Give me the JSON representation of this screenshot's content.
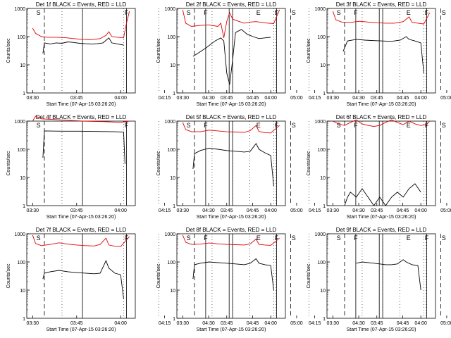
{
  "chart_data": {
    "type": "line",
    "layout": "3x3 grid of log-scale time-series panels",
    "series_legend": {
      "events": "BLACK = Events",
      "lld": "RED = LLD"
    },
    "colors": {
      "events": "#000000",
      "lld": "#e00000",
      "axes": "#000000"
    },
    "yaxis": {
      "label": "Counts/sec",
      "scale": "log",
      "ylim": [
        1,
        1000
      ],
      "ticks": [
        "1",
        "10",
        "100",
        "1000"
      ]
    },
    "xaxis": {
      "label": "Start Time (07-Apr-15 03:26:20)",
      "ticks": [
        "03:30",
        "03:45",
        "04:00",
        "04:15",
        "04:30",
        "04:45",
        "05:00"
      ],
      "xlim_minutes_from_0330": [
        -2,
        35
      ]
    },
    "markers": {
      "dashed": [
        "03:34",
        "04:58"
      ],
      "dotted": [
        "03:40",
        "03:47",
        "04:01",
        "04:13",
        "04:44",
        "04:53"
      ],
      "solid": [
        "03:47",
        "04:02",
        "04:29",
        "04:37"
      ],
      "letters": [
        {
          "text": "S",
          "at": "03:32"
        },
        {
          "text": "F",
          "at": "04:02"
        },
        {
          "text": "F",
          "at": "04:29"
        },
        {
          "text": "E",
          "at": "04:47"
        },
        {
          "text": "S",
          "at": "04:59"
        }
      ]
    },
    "panels": [
      {
        "title": "Det 1f BLACK = Events, RED = LLD",
        "events": [
          [
            3.5,
            25
          ],
          [
            4,
            60
          ],
          [
            6,
            55
          ],
          [
            8,
            60
          ],
          [
            10,
            58
          ],
          [
            12,
            65
          ],
          [
            14,
            62
          ],
          [
            16,
            58
          ],
          [
            18,
            56
          ],
          [
            20,
            55
          ],
          [
            22,
            56
          ],
          [
            24,
            60
          ],
          [
            26,
            90
          ],
          [
            27,
            60
          ],
          [
            29,
            55
          ],
          [
            31,
            50
          ]
        ],
        "lld": [
          [
            0,
            200
          ],
          [
            1,
            130
          ],
          [
            3,
            100
          ],
          [
            5,
            95
          ],
          [
            8,
            95
          ],
          [
            11,
            92
          ],
          [
            14,
            85
          ],
          [
            17,
            80
          ],
          [
            20,
            78
          ],
          [
            23,
            85
          ],
          [
            25,
            110
          ],
          [
            26,
            150
          ],
          [
            27,
            100
          ],
          [
            29,
            95
          ],
          [
            31,
            90
          ],
          [
            32,
            300
          ],
          [
            33,
            800
          ]
        ]
      },
      {
        "title": "Det 2f BLACK = Events, RED = LLD",
        "events": [
          [
            3.5,
            20
          ],
          [
            5,
            25
          ],
          [
            8,
            40
          ],
          [
            11,
            70
          ],
          [
            13,
            90
          ],
          [
            14,
            70
          ],
          [
            15,
            5
          ],
          [
            16,
            2
          ],
          [
            17,
            15
          ],
          [
            18,
            140
          ],
          [
            20,
            180
          ],
          [
            22,
            120
          ],
          [
            24,
            100
          ],
          [
            26,
            85
          ],
          [
            28,
            90
          ],
          [
            30,
            95
          ]
        ],
        "lld": [
          [
            0,
            900
          ],
          [
            1,
            300
          ],
          [
            3,
            230
          ],
          [
            6,
            250
          ],
          [
            9,
            260
          ],
          [
            12,
            230
          ],
          [
            13,
            300
          ],
          [
            14,
            90
          ],
          [
            15,
            350
          ],
          [
            16,
            700
          ],
          [
            17,
            420
          ],
          [
            19,
            350
          ],
          [
            21,
            300
          ],
          [
            23,
            330
          ],
          [
            25,
            340
          ],
          [
            27,
            320
          ],
          [
            29,
            300
          ],
          [
            31,
            290
          ],
          [
            33,
            900
          ]
        ]
      },
      {
        "title": "Det 3f BLACK = Events, RED = LLD",
        "events": [
          [
            3.5,
            30
          ],
          [
            5,
            70
          ],
          [
            8,
            80
          ],
          [
            11,
            75
          ],
          [
            14,
            72
          ],
          [
            17,
            70
          ],
          [
            20,
            68
          ],
          [
            23,
            75
          ],
          [
            25,
            100
          ],
          [
            26,
            80
          ],
          [
            28,
            70
          ],
          [
            30,
            60
          ],
          [
            31,
            5
          ]
        ],
        "lld": [
          [
            0,
            800
          ],
          [
            1,
            400
          ],
          [
            3,
            330
          ],
          [
            6,
            320
          ],
          [
            9,
            350
          ],
          [
            12,
            330
          ],
          [
            15,
            310
          ],
          [
            18,
            300
          ],
          [
            21,
            300
          ],
          [
            24,
            340
          ],
          [
            26,
            500
          ],
          [
            27,
            320
          ],
          [
            29,
            300
          ],
          [
            31,
            280
          ],
          [
            33,
            700
          ]
        ]
      },
      {
        "title": "Det 4f BLACK = Events, RED = LLD",
        "events": [
          [
            3.5,
            50
          ],
          [
            4,
            450
          ],
          [
            10,
            440
          ],
          [
            16,
            440
          ],
          [
            22,
            430
          ],
          [
            28,
            420
          ],
          [
            31,
            410
          ],
          [
            31.5,
            30
          ]
        ],
        "lld": [
          [
            0,
            1000
          ],
          [
            1,
            1500
          ],
          [
            3,
            1200
          ],
          [
            10,
            1100
          ],
          [
            17,
            1000
          ],
          [
            24,
            960
          ],
          [
            30,
            900
          ],
          [
            33,
            1000
          ]
        ]
      },
      {
        "title": "Det 5f BLACK = Events, RED = LLD",
        "events": [
          [
            3.5,
            20
          ],
          [
            4,
            70
          ],
          [
            6,
            90
          ],
          [
            9,
            110
          ],
          [
            12,
            100
          ],
          [
            15,
            90
          ],
          [
            18,
            85
          ],
          [
            21,
            80
          ],
          [
            23,
            85
          ],
          [
            25,
            160
          ],
          [
            26,
            100
          ],
          [
            28,
            75
          ],
          [
            30,
            60
          ],
          [
            31,
            5
          ]
        ],
        "lld": [
          [
            0,
            900
          ],
          [
            1,
            500
          ],
          [
            3,
            420
          ],
          [
            6,
            420
          ],
          [
            9,
            480
          ],
          [
            12,
            450
          ],
          [
            15,
            420
          ],
          [
            18,
            410
          ],
          [
            21,
            400
          ],
          [
            23,
            460
          ],
          [
            25,
            700
          ],
          [
            26,
            430
          ],
          [
            28,
            390
          ],
          [
            30,
            380
          ],
          [
            33,
            700
          ]
        ]
      },
      {
        "title": "Det 6f BLACK = Events, RED = LLD",
        "events": [
          [
            4,
            1
          ],
          [
            5,
            2
          ],
          [
            6,
            3
          ],
          [
            8,
            2
          ],
          [
            10,
            4
          ],
          [
            12,
            2
          ],
          [
            14,
            1
          ],
          [
            16,
            2
          ],
          [
            18,
            1
          ],
          [
            20,
            2
          ],
          [
            22,
            3
          ],
          [
            24,
            2
          ],
          [
            26,
            4
          ],
          [
            28,
            6
          ],
          [
            30,
            3
          ]
        ],
        "lld": [
          [
            0,
            1000
          ],
          [
            2,
            800
          ],
          [
            4,
            700
          ],
          [
            6,
            900
          ],
          [
            8,
            1100
          ],
          [
            10,
            800
          ],
          [
            12,
            700
          ],
          [
            14,
            650
          ],
          [
            16,
            700
          ],
          [
            18,
            900
          ],
          [
            20,
            1100
          ],
          [
            22,
            900
          ],
          [
            24,
            750
          ],
          [
            26,
            1000
          ],
          [
            28,
            800
          ],
          [
            30,
            700
          ],
          [
            32,
            750
          ],
          [
            33,
            1000
          ]
        ]
      },
      {
        "title": "Det 7f BLACK = Events, RED = LLD",
        "events": [
          [
            3.5,
            25
          ],
          [
            4,
            40
          ],
          [
            6,
            45
          ],
          [
            9,
            50
          ],
          [
            12,
            45
          ],
          [
            15,
            42
          ],
          [
            18,
            40
          ],
          [
            21,
            38
          ],
          [
            23,
            40
          ],
          [
            25,
            110
          ],
          [
            26,
            60
          ],
          [
            28,
            40
          ],
          [
            30,
            35
          ],
          [
            31,
            5
          ]
        ],
        "lld": [
          [
            0,
            900
          ],
          [
            1,
            450
          ],
          [
            3,
            380
          ],
          [
            6,
            420
          ],
          [
            9,
            480
          ],
          [
            12,
            430
          ],
          [
            15,
            400
          ],
          [
            18,
            380
          ],
          [
            21,
            370
          ],
          [
            23,
            420
          ],
          [
            25,
            700
          ],
          [
            26,
            400
          ],
          [
            28,
            360
          ],
          [
            30,
            350
          ],
          [
            33,
            800
          ]
        ]
      },
      {
        "title": "Det 8f BLACK = Events, RED = LLD",
        "events": [
          [
            3.5,
            25
          ],
          [
            4,
            80
          ],
          [
            6,
            90
          ],
          [
            9,
            100
          ],
          [
            12,
            95
          ],
          [
            15,
            90
          ],
          [
            18,
            85
          ],
          [
            21,
            80
          ],
          [
            23,
            90
          ],
          [
            25,
            130
          ],
          [
            26,
            90
          ],
          [
            28,
            80
          ],
          [
            30,
            75
          ],
          [
            31,
            10
          ]
        ],
        "lld": [
          [
            0,
            900
          ],
          [
            1,
            500
          ],
          [
            3,
            420
          ],
          [
            6,
            430
          ],
          [
            9,
            470
          ],
          [
            12,
            440
          ],
          [
            15,
            420
          ],
          [
            18,
            410
          ],
          [
            21,
            400
          ],
          [
            23,
            440
          ],
          [
            25,
            650
          ],
          [
            26,
            420
          ],
          [
            28,
            400
          ],
          [
            30,
            390
          ],
          [
            33,
            700
          ]
        ]
      },
      {
        "title": "Det 9f BLACK = Events, RED = LLD",
        "events": [
          [
            8,
            90
          ],
          [
            10,
            100
          ],
          [
            12,
            95
          ],
          [
            14,
            90
          ],
          [
            16,
            85
          ],
          [
            18,
            80
          ],
          [
            20,
            80
          ],
          [
            22,
            85
          ],
          [
            24,
            120
          ],
          [
            25,
            100
          ],
          [
            27,
            80
          ],
          [
            29,
            75
          ],
          [
            30,
            10
          ]
        ],
        "lld": []
      }
    ]
  }
}
